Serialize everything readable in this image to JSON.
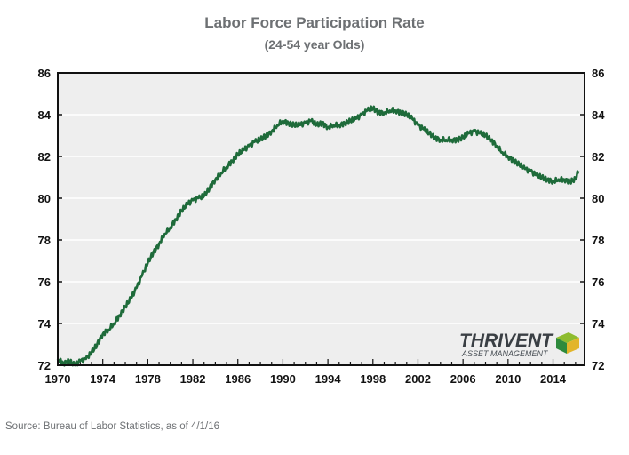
{
  "chart_data": {
    "type": "line",
    "title": "Labor Force Participation Rate",
    "subtitle": "(24-54 year Olds)",
    "xlabel": "",
    "ylabel": "",
    "xlim": [
      1970,
      2016.8
    ],
    "ylim": [
      72,
      86
    ],
    "x_ticks": [
      "1970",
      "1974",
      "1978",
      "1982",
      "1986",
      "1990",
      "1994",
      "1998",
      "2002",
      "2006",
      "2010",
      "2014"
    ],
    "y_ticks": [
      "72",
      "74",
      "76",
      "78",
      "80",
      "82",
      "84",
      "86"
    ],
    "grid": "horizontal",
    "background": "#eeeeee",
    "line_color": "#1e6b3a",
    "series": [
      {
        "x": [
          1970,
          1970.5,
          1971,
          1971.5,
          1972,
          1972.5,
          1973,
          1973.5,
          1974,
          1974.5,
          1975,
          1975.5,
          1976,
          1976.5,
          1977,
          1977.5,
          1978,
          1978.5,
          1979,
          1979.5,
          1980,
          1980.5,
          1981,
          1981.5,
          1982,
          1982.5,
          1983,
          1983.5,
          1984,
          1984.5,
          1985,
          1985.5,
          1986,
          1986.5,
          1987,
          1987.5,
          1988,
          1988.5,
          1989,
          1989.5,
          1990,
          1990.5,
          1991,
          1991.5,
          1992,
          1992.5,
          1993,
          1993.5,
          1994,
          1994.5,
          1995,
          1995.5,
          1996,
          1996.5,
          1997,
          1997.5,
          1998,
          1998.5,
          1999,
          1999.5,
          2000,
          2000.5,
          2001,
          2001.5,
          2002,
          2002.5,
          2003,
          2003.5,
          2004,
          2004.5,
          2005,
          2005.5,
          2006,
          2006.5,
          2007,
          2007.5,
          2008,
          2008.5,
          2009,
          2009.5,
          2010,
          2010.5,
          2011,
          2011.5,
          2012,
          2012.5,
          2013,
          2013.5,
          2014,
          2014.5,
          2015,
          2015.5,
          2016,
          2016.25
        ],
        "values": [
          72.3,
          72.1,
          72.2,
          72.0,
          72.2,
          72.3,
          72.6,
          73.0,
          73.5,
          73.7,
          74.0,
          74.4,
          74.8,
          75.2,
          75.7,
          76.3,
          76.9,
          77.4,
          77.8,
          78.3,
          78.6,
          79.0,
          79.4,
          79.7,
          79.9,
          80.0,
          80.1,
          80.5,
          80.9,
          81.2,
          81.5,
          81.8,
          82.1,
          82.3,
          82.5,
          82.7,
          82.8,
          83.0,
          83.2,
          83.5,
          83.7,
          83.6,
          83.5,
          83.5,
          83.6,
          83.7,
          83.5,
          83.6,
          83.4,
          83.5,
          83.5,
          83.6,
          83.7,
          83.8,
          84.0,
          84.2,
          84.3,
          84.1,
          84.1,
          84.2,
          84.2,
          84.1,
          84.0,
          83.8,
          83.5,
          83.3,
          83.1,
          82.9,
          82.8,
          82.8,
          82.8,
          82.8,
          82.9,
          83.1,
          83.2,
          83.1,
          83.0,
          82.8,
          82.5,
          82.2,
          82.0,
          81.8,
          81.6,
          81.4,
          81.3,
          81.1,
          81.0,
          80.9,
          80.8,
          80.9,
          80.9,
          80.8,
          80.9,
          81.3
        ]
      }
    ],
    "annotation": {
      "logo_name": "THRIVENT",
      "logo_sub": "ASSET MANAGEMENT",
      "logo_colors": [
        "#8ebc2e",
        "#2e8a3c",
        "#e2b52a"
      ]
    }
  },
  "source": "Source: Bureau of Labor Statistics, as of 4/1/16"
}
